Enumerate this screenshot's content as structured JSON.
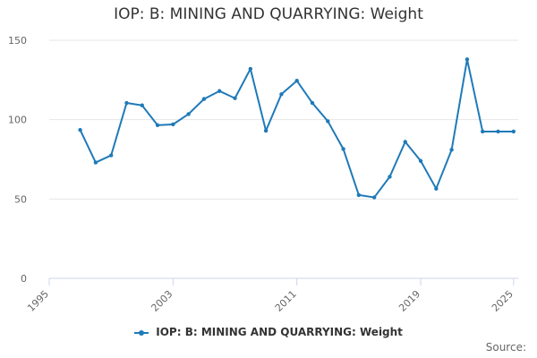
{
  "colors": {
    "series": "#1f7ab8",
    "grid": "#e6e6e6",
    "axis": "#ccd6eb"
  },
  "source_label": "Source:",
  "chart_data": {
    "type": "line",
    "title": "IOP: B: MINING AND QUARRYING: Weight",
    "xlabel": "",
    "ylabel": "",
    "xlim": [
      1995,
      2025.3
    ],
    "ylim": [
      0,
      150
    ],
    "x_ticks": [
      "1995",
      "2003",
      "2011",
      "2019",
      "2025"
    ],
    "y_ticks": [
      "0",
      "50",
      "100",
      "150"
    ],
    "grid": true,
    "legend_position": "bottom-center",
    "series": [
      {
        "name": "IOP: B: MINING AND QUARRYING: Weight",
        "x": [
          1997,
          1998,
          1999,
          2000,
          2001,
          2002,
          2003,
          2004,
          2005,
          2006,
          2007,
          2008,
          2009,
          2010,
          2011,
          2012,
          2013,
          2014,
          2015,
          2016,
          2017,
          2018,
          2019,
          2020,
          2021,
          2022,
          2023,
          2024,
          2025
        ],
        "values": [
          93.5,
          73,
          77.5,
          110.5,
          109,
          96.5,
          97,
          103.5,
          113,
          118,
          113.5,
          132,
          93,
          116,
          124.5,
          110.5,
          99,
          81.5,
          52.5,
          51,
          64,
          86,
          74,
          56.5,
          81,
          138,
          92.5,
          92.5,
          92.5
        ]
      }
    ]
  }
}
